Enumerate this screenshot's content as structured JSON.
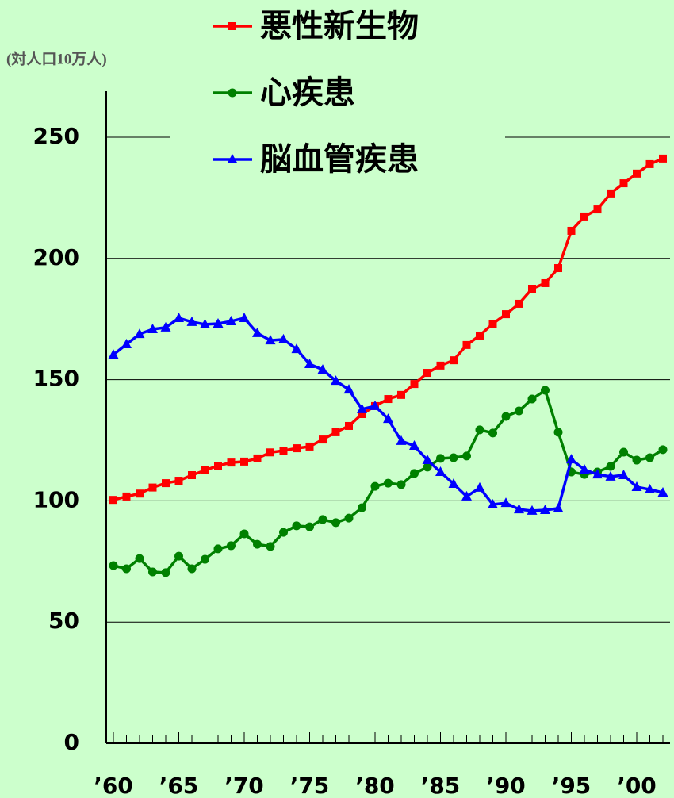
{
  "chart_data": {
    "type": "line",
    "y_label": "(対人口10万人)",
    "x": [
      1960,
      1961,
      1962,
      1963,
      1964,
      1965,
      1966,
      1967,
      1968,
      1969,
      1970,
      1971,
      1972,
      1973,
      1974,
      1975,
      1976,
      1977,
      1978,
      1979,
      1980,
      1981,
      1982,
      1983,
      1984,
      1985,
      1986,
      1987,
      1988,
      1989,
      1990,
      1991,
      1992,
      1993,
      1994,
      1995,
      1996,
      1997,
      1998,
      1999,
      2000,
      2001,
      2002
    ],
    "xlim": [
      1959.45,
      2002.5
    ],
    "xticks": [
      {
        "value": 1960,
        "label": "’60"
      },
      {
        "value": 1965,
        "label": "’65"
      },
      {
        "value": 1970,
        "label": "’70"
      },
      {
        "value": 1975,
        "label": "’75"
      },
      {
        "value": 1980,
        "label": "’80"
      },
      {
        "value": 1985,
        "label": "’85"
      },
      {
        "value": 1990,
        "label": "’90"
      },
      {
        "value": 1995,
        "label": "’95"
      },
      {
        "value": 2000,
        "label": "’00"
      }
    ],
    "ylim": [
      0,
      250
    ],
    "yticks": [
      0,
      50,
      100,
      150,
      200,
      250
    ],
    "grid": true,
    "series": [
      {
        "name": "悪性新生物",
        "color": "#ff0000",
        "marker": "square",
        "values": [
          100.4,
          101.8,
          103,
          105.5,
          107.3,
          108.3,
          110.6,
          112.6,
          114.5,
          115.8,
          116.2,
          117.5,
          120,
          120.7,
          121.7,
          122.4,
          125.3,
          128.3,
          130.9,
          135.8,
          139.1,
          142,
          143.7,
          148.2,
          152.8,
          155.8,
          158,
          164.3,
          168.2,
          173.1,
          177,
          181.3,
          187.5,
          189.8,
          196,
          211.4,
          217.3,
          220.2,
          226.8,
          231,
          235,
          238.9,
          241.2
        ]
      },
      {
        "name": "心疾患",
        "color": "#008000",
        "marker": "circle",
        "values": [
          73.3,
          72,
          76.2,
          70.7,
          70.4,
          77.2,
          72,
          75.9,
          80.2,
          81.5,
          86.4,
          82.1,
          81.2,
          87,
          89.7,
          89.3,
          92.3,
          91,
          92.9,
          97.2,
          106,
          107.3,
          106.7,
          111.3,
          113.9,
          117.5,
          117.8,
          118.5,
          129.3,
          128,
          134.8,
          137.1,
          142,
          145.6,
          128.3,
          111.9,
          110.9,
          111.9,
          114.2,
          120.1,
          116.8,
          117.8,
          121.1
        ]
      },
      {
        "name": "脳血管疾患",
        "color": "#0000ff",
        "marker": "triangle",
        "values": [
          160.3,
          164.6,
          168.8,
          170.8,
          171.5,
          175.4,
          173.8,
          172.8,
          173.1,
          174.1,
          175.4,
          169.2,
          166.2,
          166.6,
          162.6,
          156.4,
          154.1,
          149.5,
          145.9,
          137.8,
          139.1,
          133.8,
          124.7,
          122.7,
          116.8,
          111.9,
          107,
          101.8,
          105.4,
          98.5,
          99.1,
          96.5,
          95.9,
          96.2,
          96.9,
          117.1,
          112.9,
          110.9,
          110,
          110.6,
          105.7,
          104.7,
          103.4
        ]
      }
    ]
  }
}
